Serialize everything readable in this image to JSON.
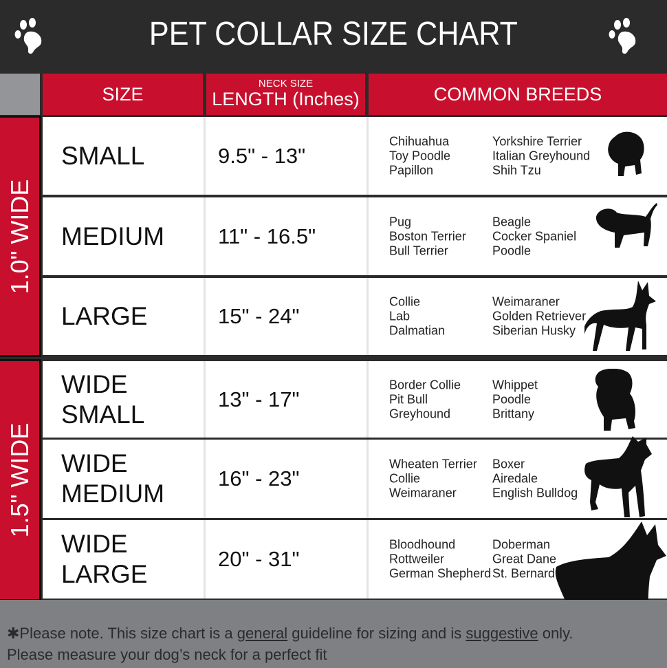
{
  "title": "PET COLLAR SIZE CHART",
  "header": {
    "size": "SIZE",
    "neck_size": "NECK SIZE",
    "length": "LENGTH (Inches)",
    "breeds": "COMMON BREEDS"
  },
  "groups": [
    "1.0\" WIDE",
    "1.5\" WIDE"
  ],
  "rows": [
    {
      "size": "SMALL",
      "length": "9.5\" - 13\"",
      "breeds_a": [
        "Chihuahua",
        "Toy Poodle",
        "Papillon"
      ],
      "breeds_b": [
        "Yorkshire Terrier",
        "Italian Greyhound",
        "Shih Tzu"
      ]
    },
    {
      "size": "MEDIUM",
      "length": "11\" - 16.5\"",
      "breeds_a": [
        "Pug",
        "Boston Terrier",
        "Bull Terrier"
      ],
      "breeds_b": [
        "Beagle",
        "Cocker Spaniel",
        "Poodle"
      ]
    },
    {
      "size": "LARGE",
      "length": "15\" - 24\"",
      "breeds_a": [
        "Collie",
        "Lab",
        "Dalmatian"
      ],
      "breeds_b": [
        "Weimaraner",
        "Golden Retriever",
        "Siberian Husky"
      ]
    },
    {
      "size": "WIDE SMALL",
      "length": "13\" - 17\"",
      "breeds_a": [
        "Border Collie",
        "Pit Bull",
        "Greyhound"
      ],
      "breeds_b": [
        "Whippet",
        "Poodle",
        "Brittany"
      ]
    },
    {
      "size": "WIDE MEDIUM",
      "length": "16\" - 23\"",
      "breeds_a": [
        "Wheaten Terrier",
        "Collie",
        "Weimaraner"
      ],
      "breeds_b": [
        "Boxer",
        "Airedale",
        "English Bulldog"
      ]
    },
    {
      "size": "WIDE LARGE",
      "length": "20\" - 31\"",
      "breeds_a": [
        "Bloodhound",
        "Rottweiler",
        "German Shepherd"
      ],
      "breeds_b": [
        "Doberman",
        "Great Dane",
        "St. Bernard"
      ]
    }
  ],
  "footer": {
    "p1": "✱Please note. This size chart is a ",
    "u1": "general",
    "p2": " guideline for sizing and is ",
    "u2": "suggestive",
    "p3": " only.",
    "line2": "Please measure your dog’s neck for a perfect fit"
  },
  "colors": {
    "red": "#c8102e",
    "dark": "#2b2b2b",
    "gray": "#7f8084"
  }
}
